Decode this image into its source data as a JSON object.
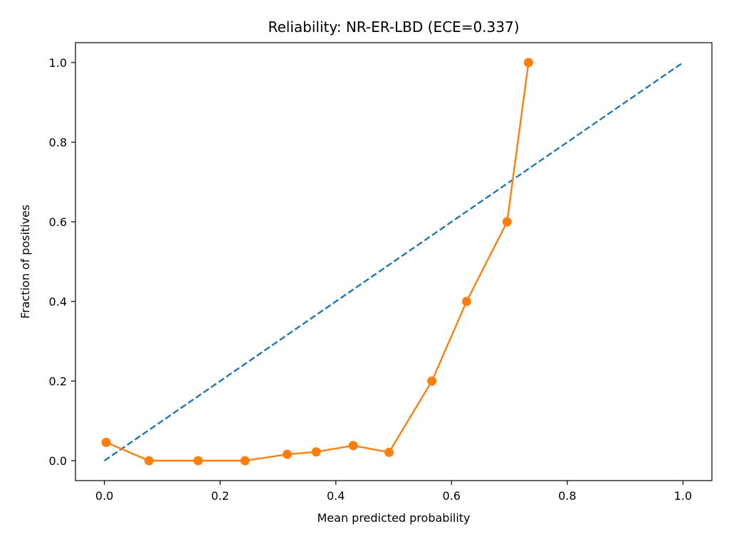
{
  "chart_data": {
    "type": "line",
    "title": "Reliability: NR-ER-LBD (ECE=0.337)",
    "xlabel": "Mean predicted probability",
    "ylabel": "Fraction of positives",
    "xlim": [
      -0.05,
      1.05
    ],
    "ylim": [
      -0.05,
      1.05
    ],
    "xticks": [
      0.0,
      0.2,
      0.4,
      0.6,
      0.8,
      1.0
    ],
    "yticks": [
      0.0,
      0.2,
      0.4,
      0.6,
      0.8,
      1.0
    ],
    "xtick_labels": [
      "0.0",
      "0.2",
      "0.4",
      "0.6",
      "0.8",
      "1.0"
    ],
    "ytick_labels": [
      "0.0",
      "0.2",
      "0.4",
      "0.6",
      "0.8",
      "1.0"
    ],
    "grid": false,
    "series": [
      {
        "style": "dashed",
        "color": "#1f77b4",
        "x": [
          0.0,
          1.0
        ],
        "y": [
          0.0,
          1.0
        ]
      },
      {
        "style": "line-markers",
        "color": "#ff7f0e",
        "x": [
          0.003,
          0.077,
          0.162,
          0.243,
          0.316,
          0.366,
          0.43,
          0.492,
          0.566,
          0.626,
          0.696,
          0.733
        ],
        "y": [
          0.046,
          0.0,
          0.0,
          0.0,
          0.016,
          0.022,
          0.038,
          0.021,
          0.2,
          0.4,
          0.6,
          1.0
        ]
      }
    ]
  }
}
